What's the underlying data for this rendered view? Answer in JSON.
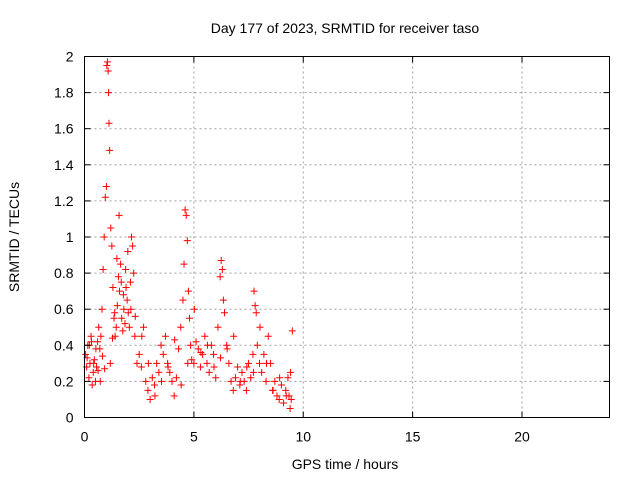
{
  "chart_data": {
    "type": "scatter",
    "title": "Day 177 of 2023, SRMTID for receiver taso",
    "xlabel": "GPS time / hours",
    "ylabel": "SRMTID / TECUs",
    "xlim": [
      0,
      24
    ],
    "ylim": [
      0,
      2
    ],
    "xticks": [
      0,
      5,
      10,
      15,
      20
    ],
    "xtick_labels": [
      "0",
      "5",
      "10",
      "15",
      "20"
    ],
    "yticks": [
      0,
      0.2,
      0.4,
      0.6,
      0.8,
      1.0,
      1.2,
      1.4,
      1.6,
      1.8,
      2.0
    ],
    "ytick_labels": [
      "0",
      "0.2",
      "0.4",
      "0.6",
      "0.8",
      "1",
      "1.2",
      "1.4",
      "1.6",
      "1.8",
      "2"
    ],
    "grid": true,
    "marker": "+",
    "color": "#ff0000",
    "series": [
      {
        "name": "SRMTID",
        "x": [
          0.05,
          0.1,
          0.15,
          0.2,
          0.25,
          0.3,
          0.35,
          0.4,
          0.45,
          0.5,
          0.55,
          0.6,
          0.65,
          0.7,
          0.75,
          0.8,
          0.85,
          0.9,
          0.95,
          1.0,
          1.02,
          1.05,
          1.08,
          1.1,
          1.12,
          1.15,
          1.2,
          1.25,
          1.3,
          1.35,
          1.4,
          1.45,
          1.5,
          1.55,
          1.6,
          1.65,
          1.7,
          1.75,
          1.8,
          1.85,
          1.9,
          1.95,
          2.0,
          2.05,
          2.1,
          2.15,
          2.2,
          2.25,
          2.3,
          2.4,
          2.5,
          2.6,
          2.7,
          2.8,
          2.9,
          3.0,
          3.1,
          3.2,
          3.3,
          3.4,
          3.5,
          3.6,
          3.7,
          3.8,
          3.9,
          4.0,
          4.1,
          4.2,
          4.3,
          4.4,
          4.5,
          4.55,
          4.6,
          4.65,
          4.7,
          4.75,
          4.8,
          4.85,
          4.9,
          5.0,
          5.1,
          5.2,
          5.3,
          5.4,
          5.5,
          5.6,
          5.7,
          5.8,
          5.9,
          6.0,
          6.1,
          6.2,
          6.25,
          6.3,
          6.35,
          6.4,
          6.5,
          6.6,
          6.7,
          6.8,
          6.9,
          7.0,
          7.1,
          7.2,
          7.3,
          7.4,
          7.5,
          7.6,
          7.7,
          7.75,
          7.8,
          7.85,
          7.9,
          8.0,
          8.1,
          8.2,
          8.3,
          8.4,
          8.5,
          8.6,
          8.7,
          8.8,
          8.9,
          9.0,
          9.1,
          9.2,
          9.3,
          9.35,
          9.4,
          9.45,
          9.5,
          0.12,
          0.22,
          0.32,
          0.42,
          0.52,
          0.62,
          0.72,
          0.82,
          0.92,
          1.18,
          1.28,
          1.38,
          1.48,
          1.58,
          1.68,
          1.78,
          1.88,
          1.98,
          2.12,
          2.32,
          2.62,
          2.92,
          3.22,
          3.52,
          3.82,
          4.12,
          4.42,
          4.72,
          5.02,
          5.32,
          5.62,
          5.92,
          6.22,
          6.52,
          6.82,
          7.12,
          7.42,
          7.72,
          8.02,
          8.32,
          8.62,
          8.92,
          9.22,
          9.42
        ],
        "y": [
          0.35,
          0.28,
          0.4,
          0.22,
          0.3,
          0.45,
          0.18,
          0.25,
          0.32,
          0.2,
          0.28,
          0.42,
          0.5,
          0.38,
          0.45,
          0.6,
          0.82,
          1.0,
          1.22,
          1.28,
          1.95,
          1.97,
          1.92,
          1.8,
          1.63,
          1.48,
          1.05,
          0.95,
          0.72,
          0.55,
          0.45,
          0.5,
          0.62,
          0.78,
          0.7,
          0.85,
          0.55,
          0.48,
          0.6,
          0.52,
          0.72,
          0.65,
          0.58,
          0.5,
          0.75,
          1.0,
          0.95,
          0.8,
          0.45,
          0.3,
          0.35,
          0.28,
          0.5,
          0.2,
          0.15,
          0.1,
          0.22,
          0.18,
          0.3,
          0.25,
          0.4,
          0.35,
          0.45,
          0.3,
          0.25,
          0.2,
          0.12,
          0.22,
          0.38,
          0.5,
          0.65,
          0.85,
          1.15,
          1.12,
          0.98,
          0.7,
          0.55,
          0.4,
          0.32,
          0.3,
          0.42,
          0.38,
          0.28,
          0.35,
          0.45,
          0.3,
          0.25,
          0.4,
          0.35,
          0.22,
          0.5,
          0.78,
          0.87,
          0.82,
          0.65,
          0.58,
          0.4,
          0.3,
          0.2,
          0.15,
          0.22,
          0.28,
          0.18,
          0.25,
          0.2,
          0.15,
          0.3,
          0.22,
          0.35,
          0.7,
          0.62,
          0.58,
          0.4,
          0.3,
          0.25,
          0.35,
          0.2,
          0.45,
          0.3,
          0.15,
          0.2,
          0.12,
          0.1,
          0.18,
          0.08,
          0.15,
          0.22,
          0.12,
          0.05,
          0.1,
          0.48,
          0.33,
          0.4,
          0.42,
          0.3,
          0.38,
          0.26,
          0.2,
          0.34,
          0.27,
          0.3,
          0.44,
          0.58,
          0.88,
          1.12,
          0.75,
          0.68,
          0.82,
          0.92,
          0.6,
          0.56,
          0.45,
          0.3,
          0.12,
          0.2,
          0.28,
          0.43,
          0.18,
          0.3,
          0.6,
          0.36,
          0.4,
          0.28,
          0.33,
          0.38,
          0.45,
          0.2,
          0.28,
          0.25,
          0.5,
          0.3,
          0.15,
          0.22,
          0.12,
          0.25
        ]
      }
    ]
  }
}
